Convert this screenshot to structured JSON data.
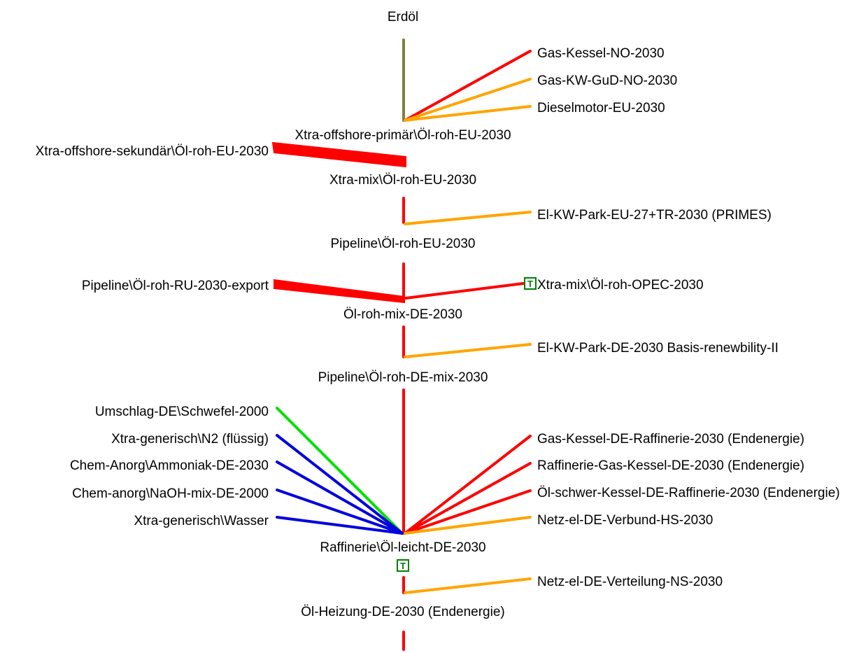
{
  "colors": {
    "red": "#ff0000",
    "orange": "#ffa500",
    "olive": "#808040",
    "green": "#00e000",
    "blue": "#0000e0",
    "t_marker": "#008000",
    "text": "#000000"
  },
  "nodes": {
    "erdoel": "Erdöl",
    "xtra_offshore_primaer": "Xtra-offshore-primär\\Öl-roh-EU-2030",
    "xtra_mix_eu": "Xtra-mix\\Öl-roh-EU-2030",
    "pipeline_eu": "Pipeline\\Öl-roh-EU-2030",
    "oel_roh_mix_de": "Öl-roh-mix-DE-2030",
    "pipeline_de_mix": "Pipeline\\Öl-roh-DE-mix-2030",
    "raffinerie": "Raffinerie\\Öl-leicht-DE-2030",
    "oel_heizung": "Öl-Heizung-DE-2030 (Endenergie)"
  },
  "inputs": {
    "gas_kessel_no": "Gas-Kessel-NO-2030",
    "gas_kw_gud_no": "Gas-KW-GuD-NO-2030",
    "dieselmotor_eu": "Dieselmotor-EU-2030",
    "xtra_offshore_sekundaer": "Xtra-offshore-sekundär\\Öl-roh-EU-2030",
    "el_kw_park_eu": "El-KW-Park-EU-27+TR-2030 (PRIMES)",
    "pipeline_ru": "Pipeline\\Öl-roh-RU-2030-export",
    "xtra_mix_opec": "Xtra-mix\\Öl-roh-OPEC-2030",
    "el_kw_park_de": "El-KW-Park-DE-2030 Basis-renewbility-II",
    "umschlag_schwefel": "Umschlag-DE\\Schwefel-2000",
    "xtra_n2": "Xtra-generisch\\N2 (flüssig)",
    "chem_ammoniak": "Chem-Anorg\\Ammoniak-DE-2030",
    "chem_naoh": "Chem-anorg\\NaOH-mix-DE-2000",
    "xtra_wasser": "Xtra-generisch\\Wasser",
    "gas_kessel_raff": "Gas-Kessel-DE-Raffinerie-2030 (Endenergie)",
    "raff_gas_kessel": "Raffinerie-Gas-Kessel-DE-2030 (Endenergie)",
    "oel_schwer_kessel": "Öl-schwer-Kessel-DE-Raffinerie-2030 (Endenergie)",
    "netz_hs": "Netz-el-DE-Verbund-HS-2030",
    "netz_ns": "Netz-el-DE-Verteilung-NS-2030"
  },
  "markers": {
    "t_label": "T"
  }
}
